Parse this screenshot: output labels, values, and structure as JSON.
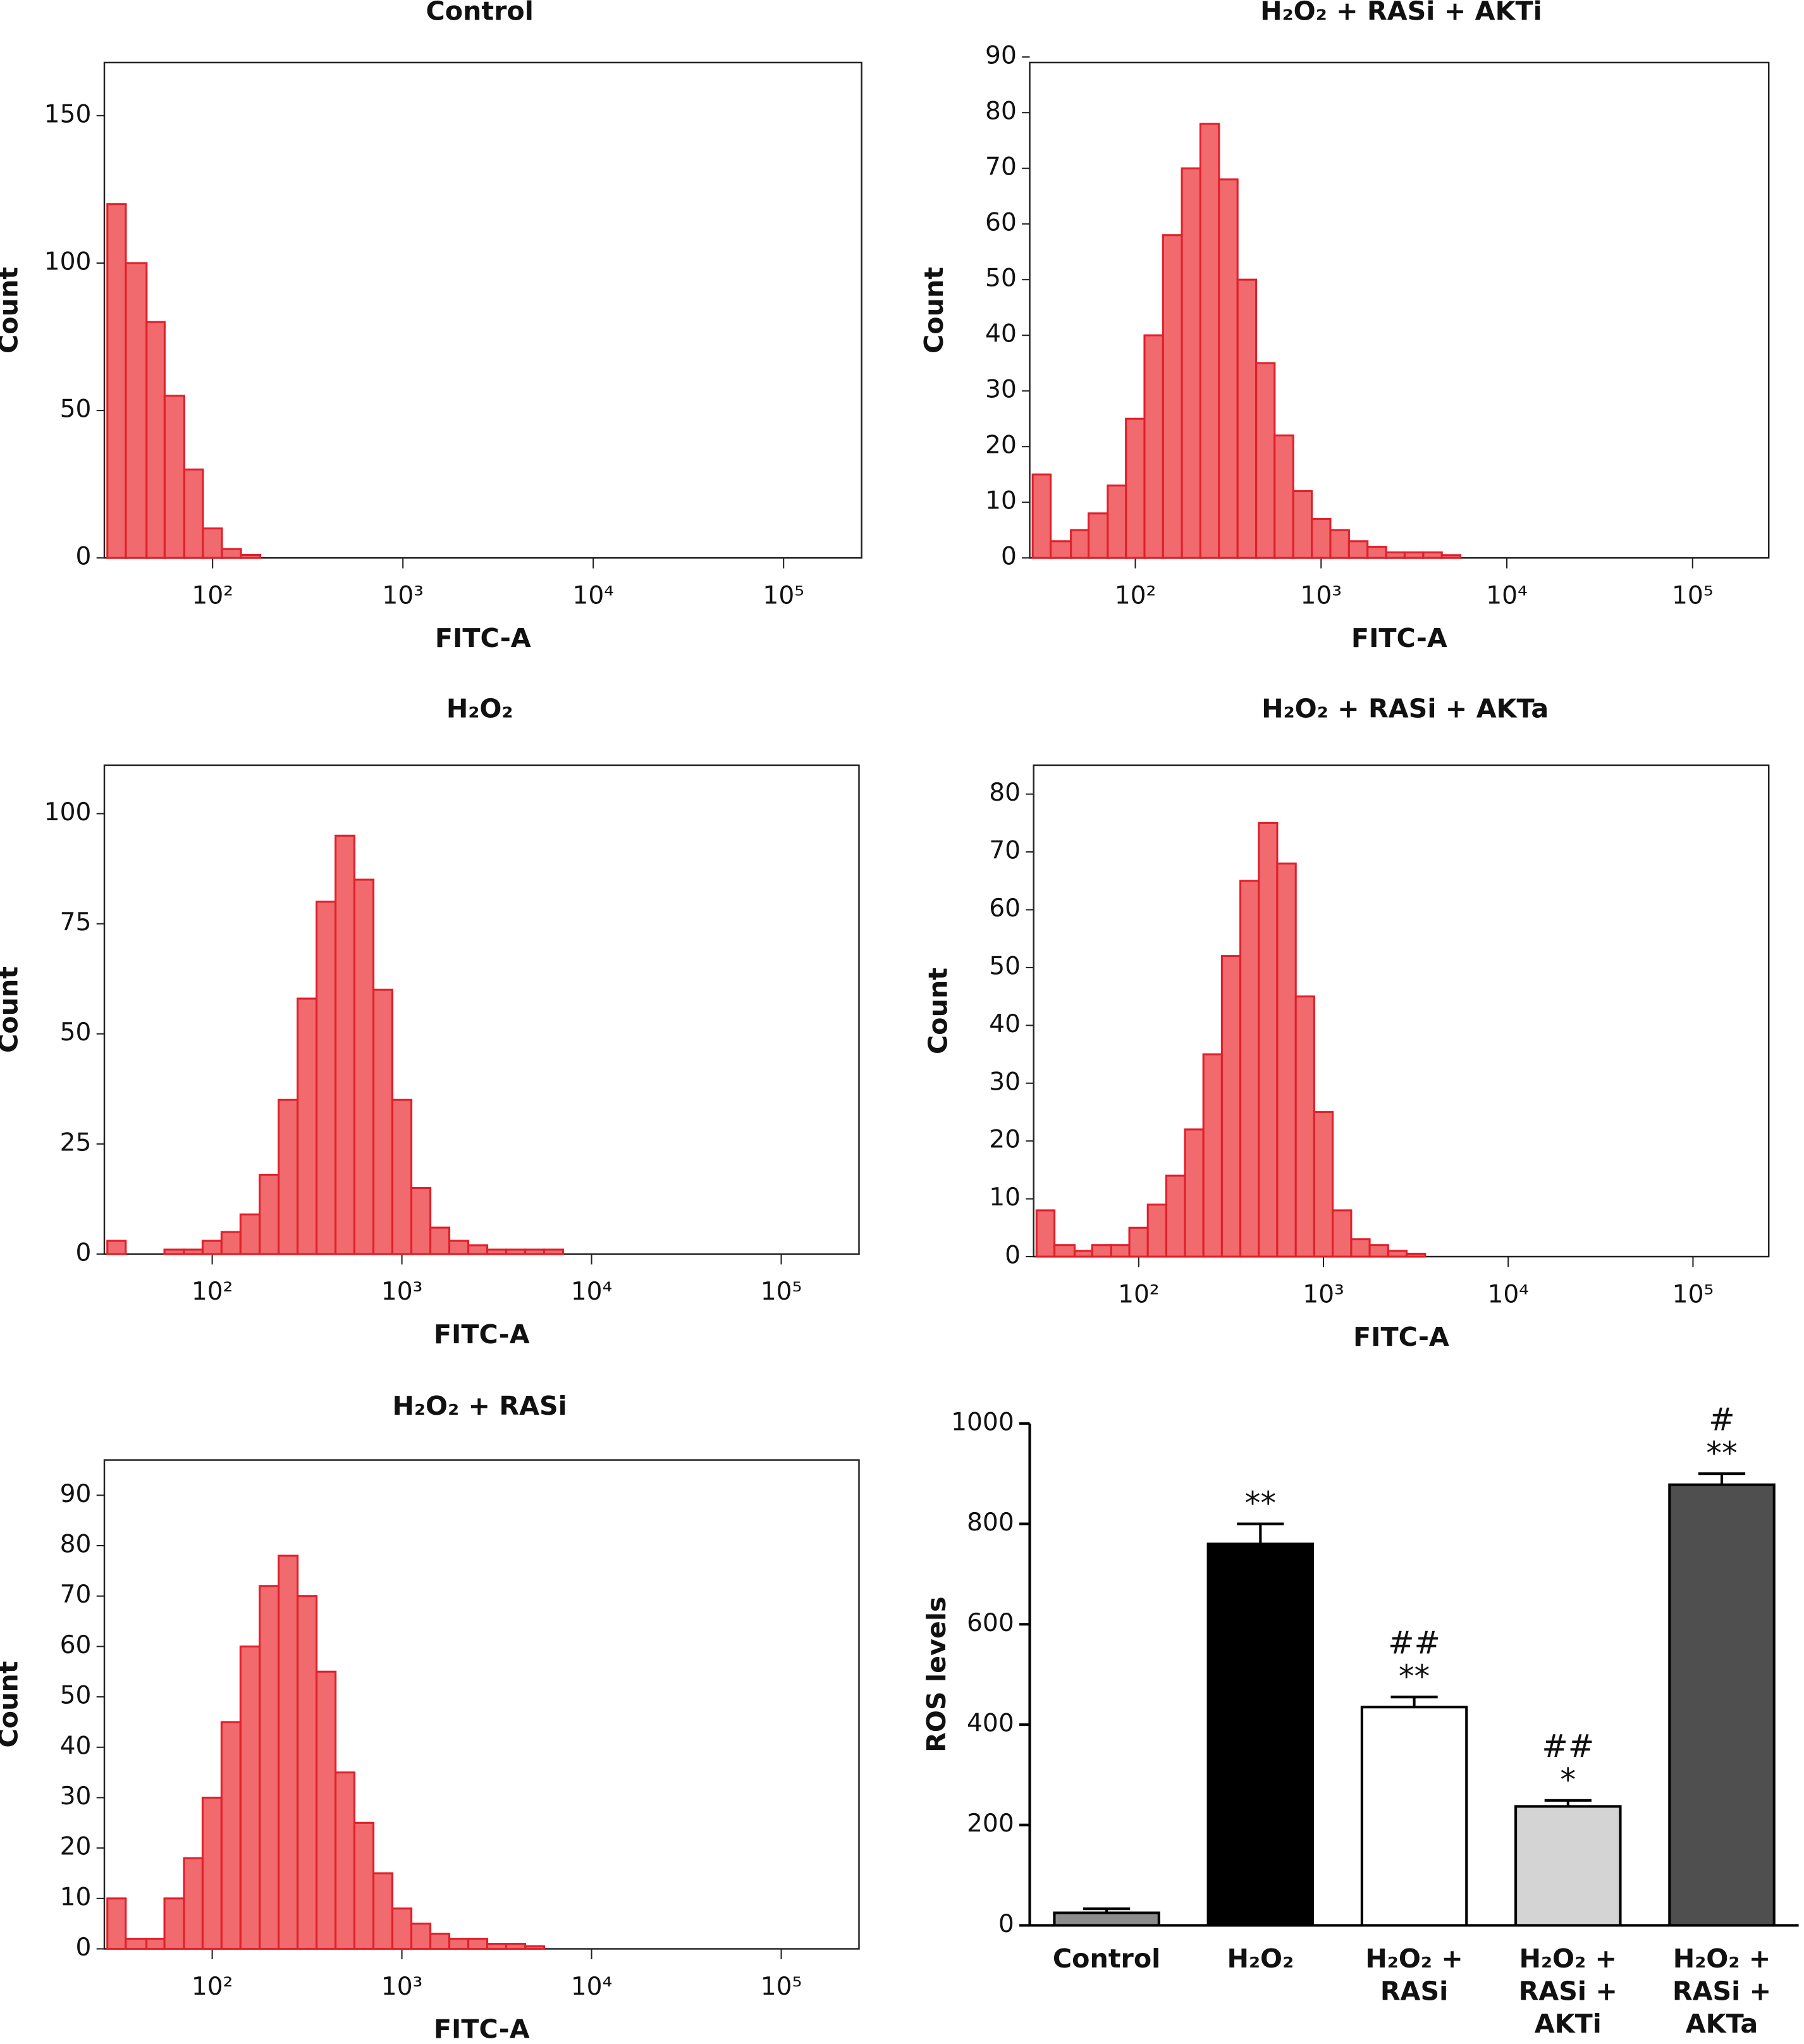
{
  "chart_data": [
    {
      "type": "histogram",
      "title": "Control",
      "xlabel": "FITC-A",
      "ylabel": "Count",
      "xscale": "log",
      "color": "#f06a6e",
      "edge_color": "#e0202a",
      "xlim": [
        27,
        257000
      ],
      "xticks": [
        {
          "value": 100,
          "label": "10²"
        },
        {
          "value": 1000,
          "label": "10³"
        },
        {
          "value": 10000,
          "label": "10⁴"
        },
        {
          "value": 100000,
          "label": "10⁵"
        }
      ],
      "ylim": [
        0,
        168
      ],
      "yticks": [
        0,
        50,
        100,
        150
      ],
      "bins": [
        28,
        35,
        45,
        56,
        71,
        89,
        112,
        141,
        178,
        224,
        282,
        355,
        447,
        562,
        708,
        891,
        1122,
        1413,
        1778,
        2239,
        2818,
        3548,
        4467,
        5623,
        7079,
        8913,
        11220
      ],
      "counts": [
        120,
        100,
        80,
        55,
        30,
        10,
        3,
        1,
        0,
        0,
        0,
        0,
        0,
        0,
        0,
        0,
        0,
        0,
        0,
        0,
        0,
        0,
        0,
        0,
        0,
        0
      ]
    },
    {
      "type": "histogram",
      "title": "H₂O₂ + RASi + AKTi",
      "xlabel": "FITC-A",
      "ylabel": "Count",
      "xscale": "log",
      "color": "#f06a6e",
      "edge_color": "#e0202a",
      "xlim": [
        27,
        257000
      ],
      "xticks": [
        {
          "value": 100,
          "label": "10²"
        },
        {
          "value": 1000,
          "label": "10³"
        },
        {
          "value": 10000,
          "label": "10⁴"
        },
        {
          "value": 100000,
          "label": "10⁵"
        }
      ],
      "ylim": [
        0,
        89
      ],
      "yticks": [
        0,
        10,
        20,
        30,
        40,
        50,
        60,
        70,
        80,
        90
      ],
      "bins": [
        28,
        35,
        45,
        56,
        71,
        89,
        112,
        141,
        178,
        224,
        282,
        355,
        447,
        562,
        708,
        891,
        1122,
        1413,
        1778,
        2239,
        2818,
        3548,
        4467,
        5623,
        7079,
        8913,
        11220
      ],
      "counts": [
        15,
        3,
        5,
        8,
        13,
        25,
        40,
        58,
        70,
        78,
        68,
        50,
        35,
        22,
        12,
        7,
        5,
        3,
        2,
        1,
        1,
        1,
        0.5,
        0,
        0,
        0
      ]
    },
    {
      "type": "histogram",
      "title": "H₂O₂",
      "xlabel": "FITC-A",
      "ylabel": "Count",
      "xscale": "log",
      "color": "#f06a6e",
      "edge_color": "#e0202a",
      "xlim": [
        27,
        257000
      ],
      "xticks": [
        {
          "value": 100,
          "label": "10²"
        },
        {
          "value": 1000,
          "label": "10³"
        },
        {
          "value": 10000,
          "label": "10⁴"
        },
        {
          "value": 100000,
          "label": "10⁵"
        }
      ],
      "ylim": [
        0,
        111
      ],
      "yticks": [
        0,
        25,
        50,
        75,
        100
      ],
      "bins": [
        28,
        35,
        45,
        56,
        71,
        89,
        112,
        141,
        178,
        224,
        282,
        355,
        447,
        562,
        708,
        891,
        1122,
        1413,
        1778,
        2239,
        2818,
        3548,
        4467,
        5623,
        7079,
        8913,
        11220
      ],
      "counts": [
        3,
        0,
        0,
        1,
        1,
        3,
        5,
        9,
        18,
        35,
        58,
        80,
        95,
        85,
        60,
        35,
        15,
        6,
        3,
        2,
        1,
        1,
        1,
        1,
        0,
        0
      ]
    },
    {
      "type": "histogram",
      "title": "H₂O₂ + RASi + AKTa",
      "xlabel": "FITC-A",
      "ylabel": "Count",
      "xscale": "log",
      "color": "#f06a6e",
      "edge_color": "#e0202a",
      "xlim": [
        27,
        257000
      ],
      "xticks": [
        {
          "value": 100,
          "label": "10²"
        },
        {
          "value": 1000,
          "label": "10³"
        },
        {
          "value": 10000,
          "label": "10⁴"
        },
        {
          "value": 100000,
          "label": "10⁵"
        }
      ],
      "ylim": [
        0,
        85
      ],
      "yticks": [
        0,
        10,
        20,
        30,
        40,
        50,
        60,
        70,
        80
      ],
      "bins": [
        28,
        35,
        45,
        56,
        71,
        89,
        112,
        141,
        178,
        224,
        282,
        355,
        447,
        562,
        708,
        891,
        1122,
        1413,
        1778,
        2239,
        2818,
        3548,
        4467,
        5623,
        7079,
        8913,
        11220
      ],
      "counts": [
        8,
        2,
        1,
        2,
        2,
        5,
        9,
        14,
        22,
        35,
        52,
        65,
        75,
        68,
        45,
        25,
        8,
        3,
        2,
        1,
        0.5,
        0,
        0,
        0,
        0,
        0
      ]
    },
    {
      "type": "histogram",
      "title": "H₂O₂ + RASi",
      "xlabel": "FITC-A",
      "ylabel": "Count",
      "xscale": "log",
      "color": "#f06a6e",
      "edge_color": "#e0202a",
      "xlim": [
        27,
        257000
      ],
      "xticks": [
        {
          "value": 100,
          "label": "10²"
        },
        {
          "value": 1000,
          "label": "10³"
        },
        {
          "value": 10000,
          "label": "10⁴"
        },
        {
          "value": 100000,
          "label": "10⁵"
        }
      ],
      "ylim": [
        0,
        97
      ],
      "yticks": [
        0,
        10,
        20,
        30,
        40,
        50,
        60,
        70,
        80,
        90
      ],
      "bins": [
        28,
        35,
        45,
        56,
        71,
        89,
        112,
        141,
        178,
        224,
        282,
        355,
        447,
        562,
        708,
        891,
        1122,
        1413,
        1778,
        2239,
        2818,
        3548,
        4467,
        5623,
        7079,
        8913,
        11220
      ],
      "counts": [
        10,
        2,
        2,
        10,
        18,
        30,
        45,
        60,
        72,
        78,
        70,
        55,
        35,
        25,
        15,
        8,
        5,
        3,
        2,
        2,
        1,
        1,
        0.5,
        0,
        0,
        0
      ]
    },
    {
      "type": "bar",
      "ylabel": "ROS levels",
      "ylim": [
        0,
        1000
      ],
      "yticks": [
        0,
        200,
        400,
        600,
        800,
        1000
      ],
      "categories": [
        [
          "Control"
        ],
        [
          "H₂O₂"
        ],
        [
          "H₂O₂ +",
          "RASi"
        ],
        [
          "H₂O₂ +",
          "RASi +",
          "AKTi"
        ],
        [
          "H₂O₂ +",
          "RASi +",
          "AKTa"
        ]
      ],
      "values": [
        25,
        760,
        435,
        237,
        878
      ],
      "errors": [
        8,
        40,
        20,
        12,
        22
      ],
      "colors": [
        "#8c8c8c",
        "#000000",
        "#ffffff",
        "#d4d4d4",
        "#4f4f4f"
      ],
      "annotations": [
        [],
        [
          "**"
        ],
        [
          "##",
          "**"
        ],
        [
          "##",
          "*"
        ],
        [
          "#",
          "**"
        ]
      ]
    }
  ]
}
